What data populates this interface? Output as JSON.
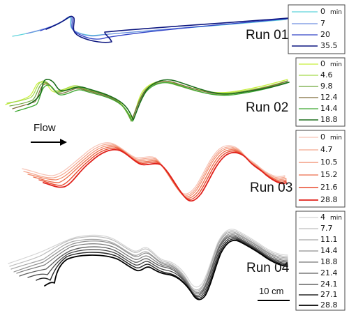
{
  "flow_label": "Flow",
  "scale_label": "10 cm",
  "unit_label": "min",
  "runs": [
    {
      "label": "Run 01",
      "entries": [
        {
          "value": "0",
          "color": "#5fd3dc"
        },
        {
          "value": "7",
          "color": "#6f8fe0"
        },
        {
          "value": "20",
          "color": "#3344c8"
        },
        {
          "value": "35.5",
          "color": "#0d1780"
        }
      ]
    },
    {
      "label": "Run 02",
      "entries": [
        {
          "value": "0",
          "color": "#c8ef3a"
        },
        {
          "value": "4.6",
          "color": "#a3d94a"
        },
        {
          "value": "9.8",
          "color": "#6fa63a"
        },
        {
          "value": "12.4",
          "color": "#7f6c3a"
        },
        {
          "value": "14.4",
          "color": "#3ea832"
        },
        {
          "value": "18.8",
          "color": "#1d6e1d"
        }
      ]
    },
    {
      "label": "Run 03",
      "entries": [
        {
          "value": "0",
          "color": "#f7c2b4"
        },
        {
          "value": "4.7",
          "color": "#f4a68e"
        },
        {
          "value": "10.5",
          "color": "#f08a6a"
        },
        {
          "value": "15.2",
          "color": "#ec6c4a"
        },
        {
          "value": "21.6",
          "color": "#e84a2e"
        },
        {
          "value": "28.8",
          "color": "#e0201a"
        }
      ]
    },
    {
      "label": "Run 04",
      "entries": [
        {
          "value": "4",
          "color": "#d4d4d4"
        },
        {
          "value": "7.7",
          "color": "#bdbdbd"
        },
        {
          "value": "11.1",
          "color": "#a6a6a6"
        },
        {
          "value": "14.4",
          "color": "#8f8f8f"
        },
        {
          "value": "18.8",
          "color": "#767676"
        },
        {
          "value": "21.4",
          "color": "#5e5e5e"
        },
        {
          "value": "24.1",
          "color": "#444444"
        },
        {
          "value": "27.1",
          "color": "#262626"
        },
        {
          "value": "28.8",
          "color": "#000000"
        }
      ]
    }
  ]
}
